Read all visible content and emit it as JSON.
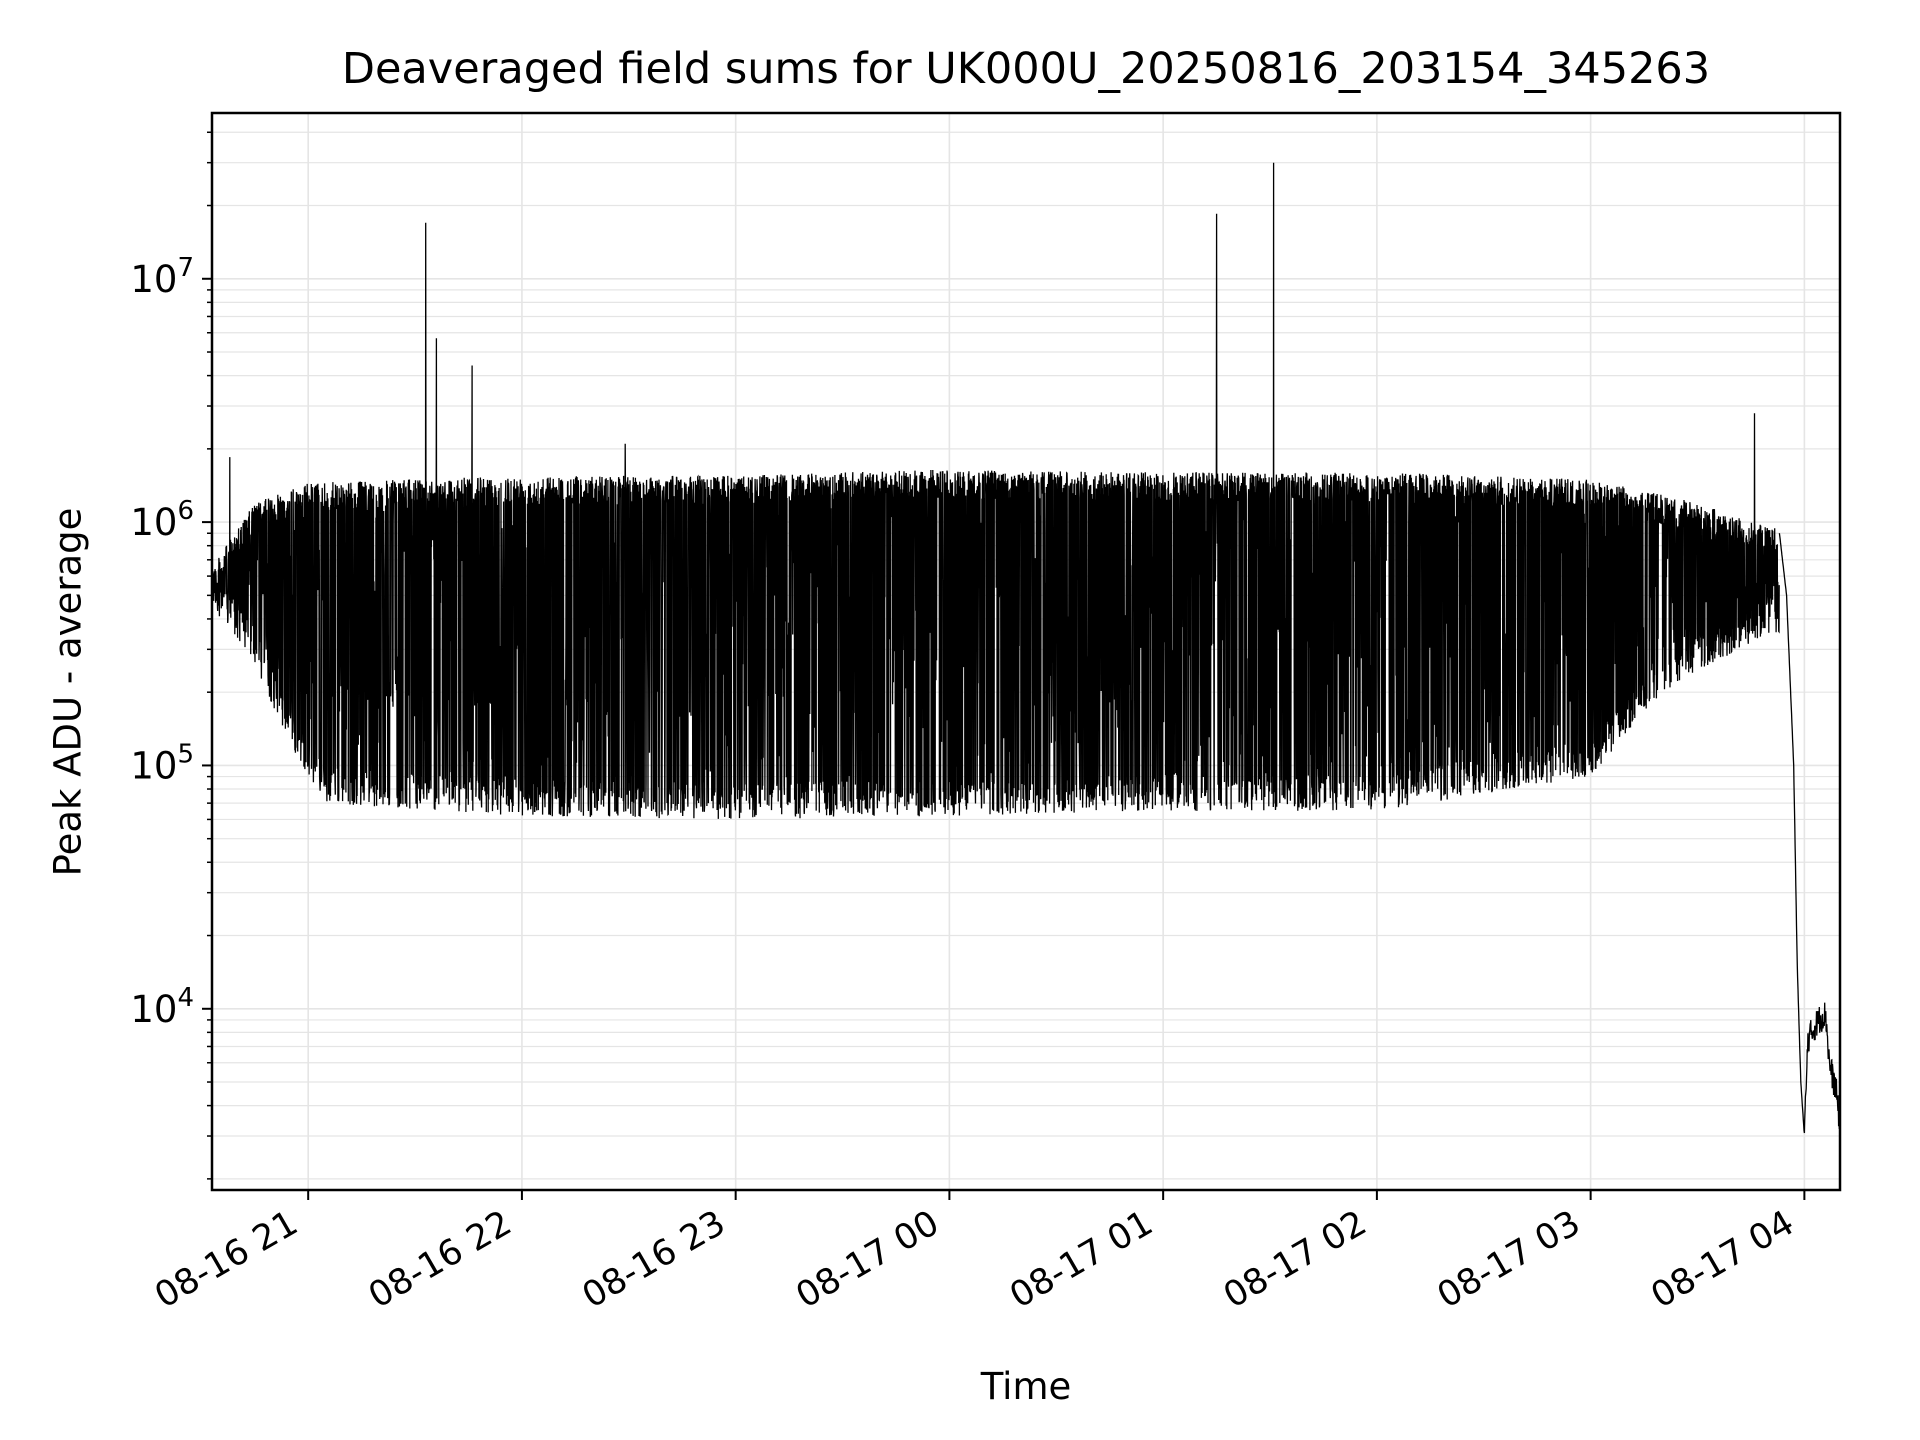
{
  "chart_data": {
    "type": "line",
    "title": "Deaveraged field sums for UK000U_20250816_203154_345263",
    "xlabel": "Time",
    "ylabel": "Peak ADU - average",
    "y_scale": "log",
    "grid": true,
    "line_color": "#000000",
    "grid_color": "#e5e5e5",
    "xlim": [
      "2025-08-16 20:33",
      "2025-08-17 04:10"
    ],
    "ylim": [
      1800,
      48000000
    ],
    "x_ticks": [
      {
        "t": "2025-08-16 21:00",
        "label": "08-16 21"
      },
      {
        "t": "2025-08-16 22:00",
        "label": "08-16 22"
      },
      {
        "t": "2025-08-16 23:00",
        "label": "08-16 23"
      },
      {
        "t": "2025-08-17 00:00",
        "label": "08-17 00"
      },
      {
        "t": "2025-08-17 01:00",
        "label": "08-17 01"
      },
      {
        "t": "2025-08-17 02:00",
        "label": "08-17 02"
      },
      {
        "t": "2025-08-17 03:00",
        "label": "08-17 03"
      },
      {
        "t": "2025-08-17 04:00",
        "label": "08-17 04"
      }
    ],
    "y_ticks": [
      {
        "value": 10000,
        "base": "10",
        "exp": "4"
      },
      {
        "value": 100000,
        "base": "10",
        "exp": "5"
      },
      {
        "value": 1000000,
        "base": "10",
        "exp": "6"
      },
      {
        "value": 10000000,
        "base": "10",
        "exp": "7"
      }
    ],
    "series": [
      {
        "upper_envelope": [
          {
            "t": "2025-08-16 20:33",
            "v": 650000
          },
          {
            "t": "2025-08-16 20:45",
            "v": 1200000
          },
          {
            "t": "2025-08-16 21:00",
            "v": 1450000
          },
          {
            "t": "2025-08-16 22:00",
            "v": 1550000
          },
          {
            "t": "2025-08-16 23:00",
            "v": 1550000
          },
          {
            "t": "2025-08-17 00:00",
            "v": 1650000
          },
          {
            "t": "2025-08-17 01:00",
            "v": 1600000
          },
          {
            "t": "2025-08-17 02:00",
            "v": 1600000
          },
          {
            "t": "2025-08-17 03:00",
            "v": 1500000
          },
          {
            "t": "2025-08-17 03:30",
            "v": 1200000
          },
          {
            "t": "2025-08-17 03:50",
            "v": 950000
          }
        ],
        "lower_envelope": [
          {
            "t": "2025-08-16 20:33",
            "v": 450000
          },
          {
            "t": "2025-08-16 20:45",
            "v": 260000
          },
          {
            "t": "2025-08-16 20:55",
            "v": 120000
          },
          {
            "t": "2025-08-16 21:05",
            "v": 70000
          },
          {
            "t": "2025-08-16 22:00",
            "v": 62000
          },
          {
            "t": "2025-08-16 23:00",
            "v": 60000
          },
          {
            "t": "2025-08-17 00:00",
            "v": 62000
          },
          {
            "t": "2025-08-17 01:00",
            "v": 65000
          },
          {
            "t": "2025-08-17 02:00",
            "v": 65000
          },
          {
            "t": "2025-08-17 03:00",
            "v": 90000
          },
          {
            "t": "2025-08-17 03:20",
            "v": 200000
          },
          {
            "t": "2025-08-17 03:50",
            "v": 350000
          }
        ],
        "spikes": [
          {
            "t": "2025-08-16 21:33",
            "v": 17000000
          },
          {
            "t": "2025-08-16 21:36",
            "v": 5700000
          },
          {
            "t": "2025-08-16 21:46",
            "v": 4400000
          },
          {
            "t": "2025-08-16 22:29",
            "v": 2100000
          },
          {
            "t": "2025-08-17 01:15",
            "v": 18500000
          },
          {
            "t": "2025-08-17 01:31",
            "v": 30000000
          },
          {
            "t": "2025-08-17 03:46",
            "v": 2800000
          },
          {
            "t": "2025-08-16 20:38",
            "v": 1850000
          }
        ],
        "tail": [
          {
            "t": "2025-08-17 03:53",
            "v": 900000
          },
          {
            "t": "2025-08-17 03:55",
            "v": 500000
          },
          {
            "t": "2025-08-17 03:57",
            "v": 100000
          },
          {
            "t": "2025-08-17 03:58",
            "v": 15000
          },
          {
            "t": "2025-08-17 03:59",
            "v": 5000
          },
          {
            "t": "2025-08-17 04:00",
            "v": 3000
          },
          {
            "t": "2025-08-17 04:01",
            "v": 7500
          },
          {
            "t": "2025-08-17 04:04",
            "v": 9000
          },
          {
            "t": "2025-08-17 04:06",
            "v": 9500
          },
          {
            "t": "2025-08-17 04:07",
            "v": 6000
          },
          {
            "t": "2025-08-17 04:09",
            "v": 4500
          },
          {
            "t": "2025-08-17 04:10",
            "v": 3300
          }
        ]
      }
    ]
  }
}
